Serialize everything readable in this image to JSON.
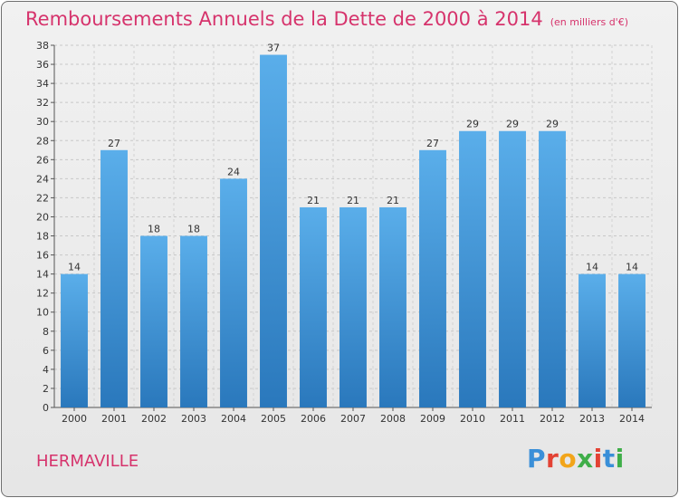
{
  "title": "Remboursements Annuels de la Dette de 2000 à 2014",
  "subtitle": "(en milliers d'€)",
  "city": "HERMAVILLE",
  "logo_text": "Proxiti",
  "colors": {
    "accent": "#d6336c",
    "bar_top": "#5aaeea",
    "bar_bottom": "#2a78bc"
  },
  "chart_data": {
    "type": "bar",
    "title": "Remboursements Annuels de la Dette de 2000 à 2014",
    "subtitle": "(en milliers d'€)",
    "categories": [
      "2000",
      "2001",
      "2002",
      "2003",
      "2004",
      "2005",
      "2006",
      "2007",
      "2008",
      "2009",
      "2010",
      "2011",
      "2012",
      "2013",
      "2014"
    ],
    "values": [
      14,
      27,
      18,
      18,
      24,
      37,
      21,
      21,
      21,
      27,
      29,
      29,
      29,
      14,
      14
    ],
    "xlabel": "",
    "ylabel": "",
    "ylim": [
      0,
      38
    ],
    "yticks": [
      0,
      2,
      4,
      6,
      8,
      10,
      12,
      14,
      16,
      18,
      20,
      22,
      24,
      26,
      28,
      30,
      32,
      34,
      36,
      38
    ],
    "grid": true,
    "data_labels": true,
    "legend": "none"
  }
}
